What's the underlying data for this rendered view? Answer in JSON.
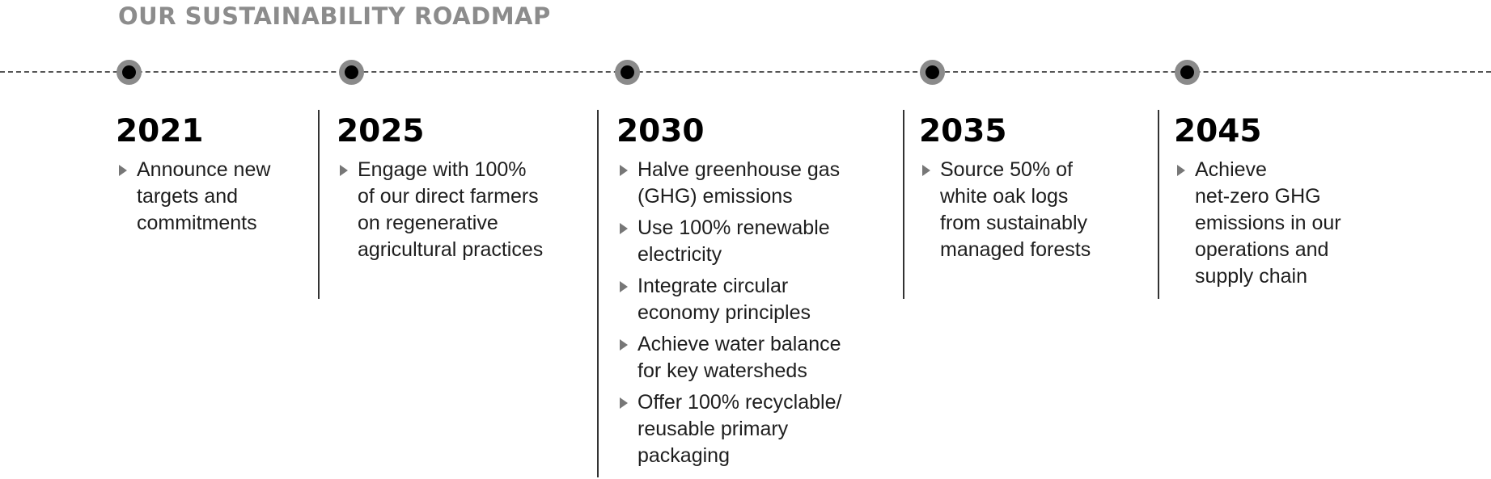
{
  "title": "OUR SUSTAINABILITY ROADMAP",
  "milestones": [
    {
      "year": "2021",
      "items": [
        "Announce new\ntargets and\ncommitments"
      ]
    },
    {
      "year": "2025",
      "items": [
        "Engage with 100%\nof our direct farmers\non regenerative\nagricultural practices"
      ]
    },
    {
      "year": "2030",
      "items": [
        "Halve greenhouse gas\n(GHG) emissions",
        "Use 100% renewable\nelectricity",
        "Integrate circular\neconomy principles",
        "Achieve water balance\nfor key watersheds",
        "Offer 100% recyclable/\nreusable primary\npackaging"
      ]
    },
    {
      "year": "2035",
      "items": [
        "Source 50% of\nwhite oak logs\nfrom sustainably\nmanaged forests"
      ]
    },
    {
      "year": "2045",
      "items": [
        "Achieve\nnet-zero GHG\nemissions in our\noperations and\nsupply chain"
      ]
    }
  ]
}
